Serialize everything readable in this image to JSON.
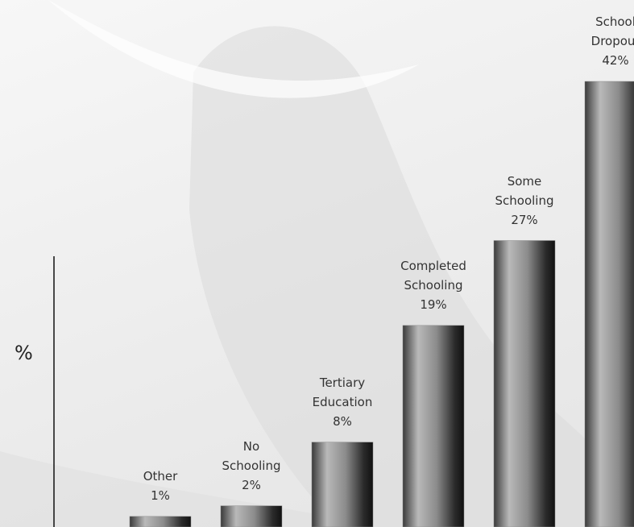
{
  "chart_data": {
    "type": "bar",
    "categories": [
      "Other",
      "No Schooling",
      "Tertiary Education",
      "Completed Schooling",
      "Some Schooling",
      "School Dropout"
    ],
    "values": [
      1,
      2,
      8,
      19,
      27,
      42
    ],
    "value_labels": [
      "1%",
      "2%",
      "8%",
      "19%",
      "27%",
      "42%"
    ],
    "y_label": "%",
    "ylim": [
      0,
      42
    ],
    "color": "#8a8a8a"
  }
}
